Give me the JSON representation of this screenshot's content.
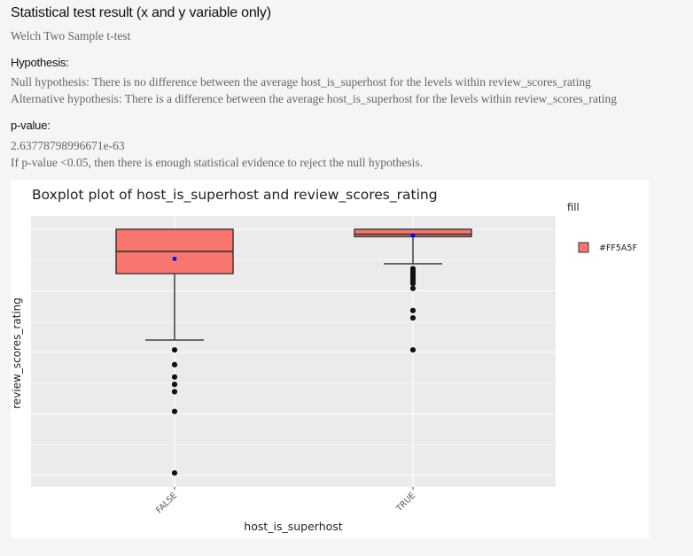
{
  "page": {
    "title": "Statistical test result (x and y variable only)",
    "test_name": "Welch Two Sample t-test",
    "hypothesis_heading": "Hypothesis:",
    "null_hypothesis": "Null hypothesis: There is no difference between the average host_is_superhost for the levels within review_scores_rating",
    "alternative_hypothesis": "Alternative hypothesis: There is a difference between the average host_is_superhost for the levels within review_scores_rating",
    "pvalue_heading": "p-value:",
    "pvalue": "2.63778798996671e-63",
    "pvalue_note": "If p-value <0.05, then there is enough statistical evidence to reject the null hypothesis."
  },
  "colors": {
    "box_fill": "#F8766D",
    "mean_point": "#0000FF",
    "panel_bg": "#EBEBEB",
    "grid": "#FFFFFF"
  },
  "chart_data": {
    "type": "box",
    "title": "Boxplot plot of  host_is_superhost  and  review_scores_rating",
    "xlabel": "host_is_superhost",
    "ylabel": "review_scores_rating",
    "y_tick_labels_shown": false,
    "ylim": [
      0,
      100
    ],
    "grid": true,
    "legend": {
      "title": "fill",
      "placement": "right",
      "entries": [
        {
          "label": "#FF5A5F",
          "color": "#F8766D"
        }
      ]
    },
    "categories": [
      "FALSE",
      "TRUE"
    ],
    "boxes": [
      {
        "category": "FALSE",
        "q1": 82,
        "median": 91,
        "q3": 100,
        "whisker_low": 55,
        "whisker_high": 100,
        "mean": 88,
        "outliers": [
          51,
          45,
          40,
          37,
          34,
          26,
          1
        ]
      },
      {
        "category": "TRUE",
        "q1": 97,
        "median": 98,
        "q3": 100,
        "whisker_low": 86,
        "whisker_high": 100,
        "mean": 97.5,
        "outliers": [
          84,
          83,
          82,
          81,
          80,
          79,
          78,
          76,
          67,
          64,
          51
        ]
      }
    ]
  }
}
